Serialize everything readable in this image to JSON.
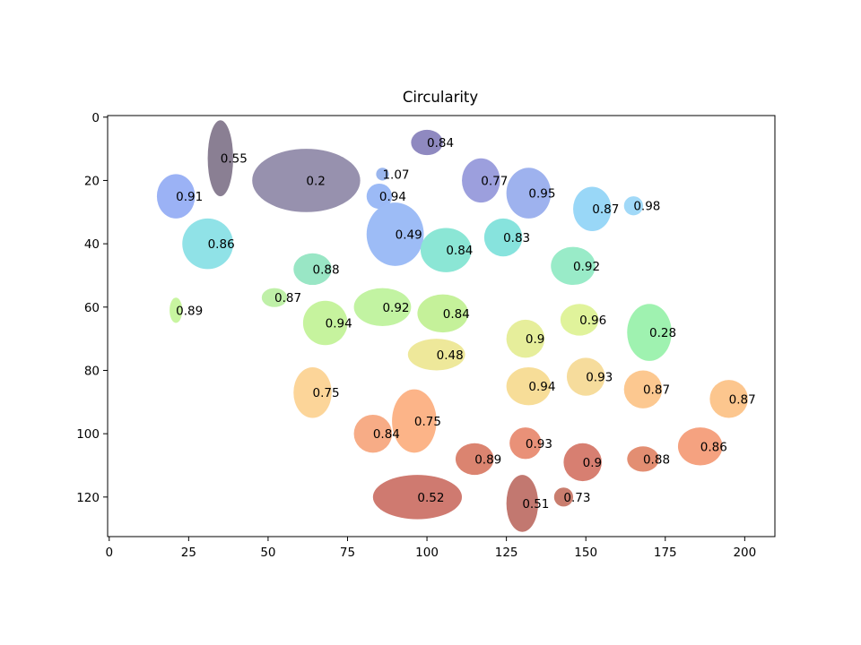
{
  "chart_data": {
    "type": "scatter",
    "title": "Circularity",
    "xlabel": "",
    "ylabel": "",
    "xlim": [
      -0.5,
      209.5
    ],
    "ylim": [
      132.5,
      -0.5
    ],
    "xticks": [
      0,
      25,
      50,
      75,
      100,
      125,
      150,
      175,
      200
    ],
    "yticks": [
      0,
      20,
      40,
      60,
      80,
      100,
      120
    ],
    "grid": false,
    "regions": [
      {
        "label": "0.55",
        "x": 35,
        "y": 13,
        "rx": 4,
        "ry": 12,
        "color": "#8a7f93"
      },
      {
        "label": "0.2",
        "x": 62,
        "y": 20,
        "rx": 17,
        "ry": 10,
        "color": "#9791ae"
      },
      {
        "label": "0.84",
        "x": 100,
        "y": 8,
        "rx": 5,
        "ry": 4,
        "color": "#8f89c0"
      },
      {
        "label": "1.07",
        "x": 86,
        "y": 18,
        "rx": 2,
        "ry": 2,
        "color": "#9ab6ee"
      },
      {
        "label": "0.91",
        "x": 21,
        "y": 25,
        "rx": 6,
        "ry": 7,
        "color": "#9bb2f5"
      },
      {
        "label": "0.94",
        "x": 85,
        "y": 25,
        "rx": 4,
        "ry": 4,
        "color": "#9cbaf6"
      },
      {
        "label": "0.77",
        "x": 117,
        "y": 20,
        "rx": 6,
        "ry": 7,
        "color": "#9c9fdd"
      },
      {
        "label": "0.95",
        "x": 132,
        "y": 24,
        "rx": 7,
        "ry": 8,
        "color": "#9eb2ee"
      },
      {
        "label": "0.87",
        "x": 152,
        "y": 29,
        "rx": 6,
        "ry": 7,
        "color": "#99d7f7"
      },
      {
        "label": "0.98",
        "x": 165,
        "y": 28,
        "rx": 3,
        "ry": 3,
        "color": "#a1d9f8"
      },
      {
        "label": "0.49",
        "x": 90,
        "y": 37,
        "rx": 9,
        "ry": 10,
        "color": "#9dbcf6"
      },
      {
        "label": "0.86",
        "x": 31,
        "y": 40,
        "rx": 8,
        "ry": 8,
        "color": "#90e2e7"
      },
      {
        "label": "0.83",
        "x": 124,
        "y": 38,
        "rx": 6,
        "ry": 6,
        "color": "#87e3dd"
      },
      {
        "label": "0.84",
        "x": 106,
        "y": 42,
        "rx": 8,
        "ry": 7,
        "color": "#8be6d5"
      },
      {
        "label": "0.88",
        "x": 64,
        "y": 48,
        "rx": 6,
        "ry": 5,
        "color": "#99e6c5"
      },
      {
        "label": "0.92",
        "x": 146,
        "y": 47,
        "rx": 7,
        "ry": 6,
        "color": "#99ebc8"
      },
      {
        "label": "0.87",
        "x": 52,
        "y": 57,
        "rx": 4,
        "ry": 3,
        "color": "#bff0a8"
      },
      {
        "label": "0.89",
        "x": 21,
        "y": 61,
        "rx": 2,
        "ry": 4,
        "color": "#c8f5a0"
      },
      {
        "label": "0.92",
        "x": 86,
        "y": 60,
        "rx": 9,
        "ry": 6,
        "color": "#c2f3a2"
      },
      {
        "label": "0.94",
        "x": 68,
        "y": 65,
        "rx": 7,
        "ry": 7,
        "color": "#c6f39e"
      },
      {
        "label": "0.84",
        "x": 105,
        "y": 62,
        "rx": 8,
        "ry": 6,
        "color": "#c5f19a"
      },
      {
        "label": "0.96",
        "x": 148,
        "y": 64,
        "rx": 6,
        "ry": 5,
        "color": "#e0f39b"
      },
      {
        "label": "0.28",
        "x": 170,
        "y": 68,
        "rx": 7,
        "ry": 9,
        "color": "#9ff2b0"
      },
      {
        "label": "0.9",
        "x": 131,
        "y": 70,
        "rx": 6,
        "ry": 6,
        "color": "#e6ee9b"
      },
      {
        "label": "0.48",
        "x": 103,
        "y": 75,
        "rx": 9,
        "ry": 5,
        "color": "#eee89a"
      },
      {
        "label": "0.94",
        "x": 132,
        "y": 85,
        "rx": 7,
        "ry": 6,
        "color": "#f7dd98"
      },
      {
        "label": "0.93",
        "x": 150,
        "y": 82,
        "rx": 6,
        "ry": 6,
        "color": "#f6dc9c"
      },
      {
        "label": "0.87",
        "x": 168,
        "y": 86,
        "rx": 6,
        "ry": 6,
        "color": "#fcc890"
      },
      {
        "label": "0.87",
        "x": 195,
        "y": 89,
        "rx": 6,
        "ry": 6,
        "color": "#fcc68e"
      },
      {
        "label": "0.75",
        "x": 64,
        "y": 87,
        "rx": 6,
        "ry": 8,
        "color": "#fcd599"
      },
      {
        "label": "0.84",
        "x": 83,
        "y": 100,
        "rx": 6,
        "ry": 6,
        "color": "#f7ac86"
      },
      {
        "label": "0.75",
        "x": 96,
        "y": 96,
        "rx": 7,
        "ry": 10,
        "color": "#fcb488"
      },
      {
        "label": "0.93",
        "x": 131,
        "y": 103,
        "rx": 5,
        "ry": 5,
        "color": "#e99178"
      },
      {
        "label": "0.86",
        "x": 186,
        "y": 104,
        "rx": 7,
        "ry": 6,
        "color": "#f5a280"
      },
      {
        "label": "0.88",
        "x": 168,
        "y": 108,
        "rx": 5,
        "ry": 4,
        "color": "#e38e72"
      },
      {
        "label": "0.89",
        "x": 115,
        "y": 108,
        "rx": 6,
        "ry": 5,
        "color": "#db8470"
      },
      {
        "label": "0.9",
        "x": 149,
        "y": 109,
        "rx": 6,
        "ry": 6,
        "color": "#d77f71"
      },
      {
        "label": "0.52",
        "x": 97,
        "y": 120,
        "rx": 14,
        "ry": 7,
        "color": "#cf7a70"
      },
      {
        "label": "0.51",
        "x": 130,
        "y": 122,
        "rx": 5,
        "ry": 9,
        "color": "#c27870"
      },
      {
        "label": "0.73",
        "x": 143,
        "y": 120,
        "rx": 3,
        "ry": 3,
        "color": "#c97d6e"
      }
    ]
  }
}
